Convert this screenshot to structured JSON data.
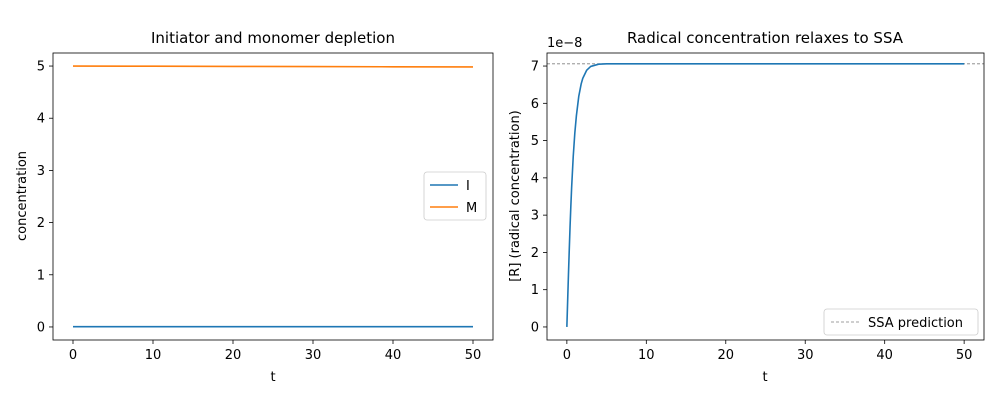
{
  "chart_data": [
    {
      "type": "line",
      "title": "Initiator and monomer depletion",
      "xlabel": "t",
      "ylabel": "concentration",
      "xlim": [
        -2.5,
        52.5
      ],
      "ylim": [
        -0.25,
        5.25
      ],
      "xticks": [
        "0",
        "10",
        "20",
        "30",
        "40",
        "50"
      ],
      "yticks": [
        "0",
        "1",
        "2",
        "3",
        "4",
        "5"
      ],
      "legend": "center-right",
      "grid": false,
      "series": [
        {
          "name": "I",
          "color": "#1f77b4",
          "x": [
            0,
            50
          ],
          "y": [
            0.005,
            0.005
          ]
        },
        {
          "name": "M",
          "color": "#ff7f0e",
          "x": [
            0,
            10,
            20,
            30,
            40,
            50
          ],
          "y": [
            5.0,
            4.997,
            4.993,
            4.99,
            4.986,
            4.983
          ]
        }
      ]
    },
    {
      "type": "line",
      "title": "Radical concentration relaxes to SSA",
      "xlabel": "t",
      "ylabel": "[R] (radical concentration)",
      "offset_text": "1e−8",
      "xlim": [
        -2.5,
        52.5
      ],
      "ylim": [
        -0.35,
        7.35
      ],
      "xticks": [
        "0",
        "10",
        "20",
        "30",
        "40",
        "50"
      ],
      "yticks": [
        "0",
        "1",
        "2",
        "3",
        "4",
        "5",
        "6",
        "7"
      ],
      "legend": "lower-right",
      "grid": false,
      "series": [
        {
          "color": "#1f77b4",
          "x": [
            0,
            0.1,
            0.2,
            0.3,
            0.4,
            0.5,
            0.6,
            0.8,
            1.0,
            1.2,
            1.5,
            1.8,
            2.0,
            2.5,
            3.0,
            4.0,
            5.0,
            10,
            20,
            30,
            40,
            50
          ],
          "y": [
            0,
            0.71,
            1.4,
            2.06,
            2.68,
            3.24,
            3.74,
            4.57,
            5.2,
            5.67,
            6.19,
            6.52,
            6.67,
            6.89,
            6.99,
            7.05,
            7.06,
            7.06,
            7.06,
            7.06,
            7.06,
            7.06
          ]
        }
      ],
      "reference_line": {
        "name": "SSA prediction",
        "y": 7.06,
        "color": "#808080",
        "style": "dashed"
      }
    }
  ]
}
